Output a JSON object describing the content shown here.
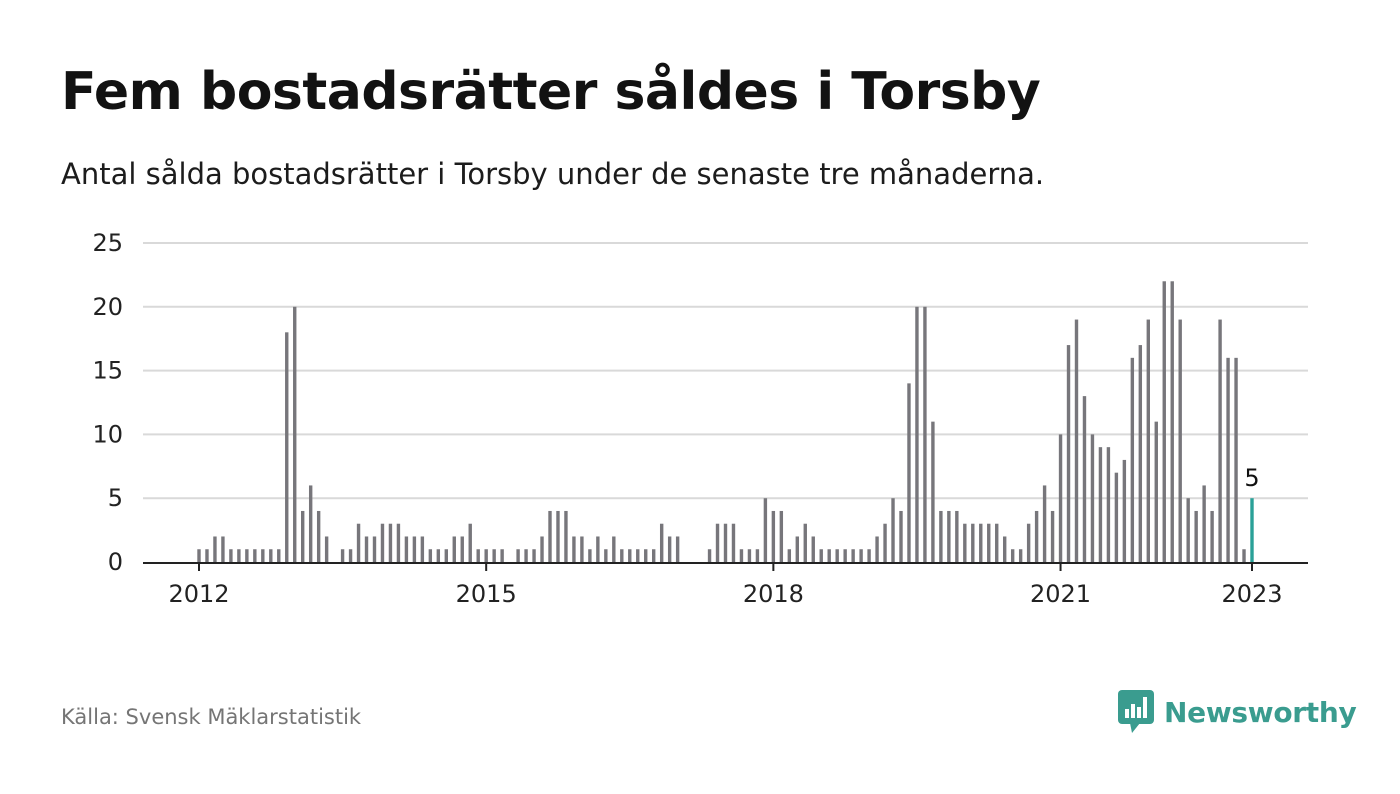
{
  "header": {
    "title": "Fem bostadsrätter såldes i Torsby",
    "subtitle": "Antal sålda bostadsrätter i Torsby under de senaste tre månaderna."
  },
  "footer": {
    "source": "Källa: Svensk Mäklarstatistik",
    "brand": "Newsworthy",
    "brand_icon": "bar-chart-speech-bubble-icon"
  },
  "colors": {
    "bar": "#77767b",
    "highlight": "#2aa198",
    "grid": "#d9d9d9",
    "axis": "#222222",
    "brand": "#3a9c8f"
  },
  "chart_data": {
    "type": "bar",
    "title": "Fem bostadsrätter såldes i Torsby",
    "subtitle": "Antal sålda bostadsrätter i Torsby under de senaste tre månaderna.",
    "xlabel": "",
    "ylabel": "",
    "ylim": [
      0,
      25
    ],
    "yticks": [
      0,
      5,
      10,
      15,
      20,
      25
    ],
    "grid": true,
    "x_start": "2012-01",
    "x_end": "2023-01",
    "x_ticks": [
      {
        "date": "2012-01",
        "label": "2012"
      },
      {
        "date": "2015-01",
        "label": "2015"
      },
      {
        "date": "2018-01",
        "label": "2018"
      },
      {
        "date": "2021-01",
        "label": "2021"
      },
      {
        "date": "2023-01",
        "label": "2023"
      }
    ],
    "highlight": {
      "date": "2023-01",
      "value": 5,
      "label": "5"
    },
    "series": [
      {
        "values": [
          {
            "date": "2012-01",
            "value": 1
          },
          {
            "date": "2012-02",
            "value": 1
          },
          {
            "date": "2012-03",
            "value": 2
          },
          {
            "date": "2012-04",
            "value": 2
          },
          {
            "date": "2012-05",
            "value": 1
          },
          {
            "date": "2012-06",
            "value": 1
          },
          {
            "date": "2012-07",
            "value": 1
          },
          {
            "date": "2012-08",
            "value": 1
          },
          {
            "date": "2012-09",
            "value": 1
          },
          {
            "date": "2012-10",
            "value": 1
          },
          {
            "date": "2012-11",
            "value": 1
          },
          {
            "date": "2012-12",
            "value": 18
          },
          {
            "date": "2013-01",
            "value": 20
          },
          {
            "date": "2013-02",
            "value": 4
          },
          {
            "date": "2013-03",
            "value": 6
          },
          {
            "date": "2013-04",
            "value": 4
          },
          {
            "date": "2013-05",
            "value": 2
          },
          {
            "date": "2013-06",
            "value": 0
          },
          {
            "date": "2013-07",
            "value": 1
          },
          {
            "date": "2013-08",
            "value": 1
          },
          {
            "date": "2013-09",
            "value": 3
          },
          {
            "date": "2013-10",
            "value": 2
          },
          {
            "date": "2013-11",
            "value": 2
          },
          {
            "date": "2013-12",
            "value": 3
          },
          {
            "date": "2014-01",
            "value": 3
          },
          {
            "date": "2014-02",
            "value": 3
          },
          {
            "date": "2014-03",
            "value": 2
          },
          {
            "date": "2014-04",
            "value": 2
          },
          {
            "date": "2014-05",
            "value": 2
          },
          {
            "date": "2014-06",
            "value": 1
          },
          {
            "date": "2014-07",
            "value": 1
          },
          {
            "date": "2014-08",
            "value": 1
          },
          {
            "date": "2014-09",
            "value": 2
          },
          {
            "date": "2014-10",
            "value": 2
          },
          {
            "date": "2014-11",
            "value": 3
          },
          {
            "date": "2014-12",
            "value": 1
          },
          {
            "date": "2015-01",
            "value": 1
          },
          {
            "date": "2015-02",
            "value": 1
          },
          {
            "date": "2015-03",
            "value": 1
          },
          {
            "date": "2015-04",
            "value": 0
          },
          {
            "date": "2015-05",
            "value": 1
          },
          {
            "date": "2015-06",
            "value": 1
          },
          {
            "date": "2015-07",
            "value": 1
          },
          {
            "date": "2015-08",
            "value": 2
          },
          {
            "date": "2015-09",
            "value": 4
          },
          {
            "date": "2015-10",
            "value": 4
          },
          {
            "date": "2015-11",
            "value": 4
          },
          {
            "date": "2015-12",
            "value": 2
          },
          {
            "date": "2016-01",
            "value": 2
          },
          {
            "date": "2016-02",
            "value": 1
          },
          {
            "date": "2016-03",
            "value": 2
          },
          {
            "date": "2016-04",
            "value": 1
          },
          {
            "date": "2016-05",
            "value": 2
          },
          {
            "date": "2016-06",
            "value": 1
          },
          {
            "date": "2016-07",
            "value": 1
          },
          {
            "date": "2016-08",
            "value": 1
          },
          {
            "date": "2016-09",
            "value": 1
          },
          {
            "date": "2016-10",
            "value": 1
          },
          {
            "date": "2016-11",
            "value": 3
          },
          {
            "date": "2016-12",
            "value": 2
          },
          {
            "date": "2017-01",
            "value": 2
          },
          {
            "date": "2017-02",
            "value": 0
          },
          {
            "date": "2017-03",
            "value": 0
          },
          {
            "date": "2017-04",
            "value": 0
          },
          {
            "date": "2017-05",
            "value": 1
          },
          {
            "date": "2017-06",
            "value": 3
          },
          {
            "date": "2017-07",
            "value": 3
          },
          {
            "date": "2017-08",
            "value": 3
          },
          {
            "date": "2017-09",
            "value": 1
          },
          {
            "date": "2017-10",
            "value": 1
          },
          {
            "date": "2017-11",
            "value": 1
          },
          {
            "date": "2017-12",
            "value": 5
          },
          {
            "date": "2018-01",
            "value": 4
          },
          {
            "date": "2018-02",
            "value": 4
          },
          {
            "date": "2018-03",
            "value": 1
          },
          {
            "date": "2018-04",
            "value": 2
          },
          {
            "date": "2018-05",
            "value": 3
          },
          {
            "date": "2018-06",
            "value": 2
          },
          {
            "date": "2018-07",
            "value": 1
          },
          {
            "date": "2018-08",
            "value": 1
          },
          {
            "date": "2018-09",
            "value": 1
          },
          {
            "date": "2018-10",
            "value": 1
          },
          {
            "date": "2018-11",
            "value": 1
          },
          {
            "date": "2018-12",
            "value": 1
          },
          {
            "date": "2019-01",
            "value": 1
          },
          {
            "date": "2019-02",
            "value": 2
          },
          {
            "date": "2019-03",
            "value": 3
          },
          {
            "date": "2019-04",
            "value": 5
          },
          {
            "date": "2019-05",
            "value": 4
          },
          {
            "date": "2019-06",
            "value": 14
          },
          {
            "date": "2019-07",
            "value": 20
          },
          {
            "date": "2019-08",
            "value": 20
          },
          {
            "date": "2019-09",
            "value": 11
          },
          {
            "date": "2019-10",
            "value": 4
          },
          {
            "date": "2019-11",
            "value": 4
          },
          {
            "date": "2019-12",
            "value": 4
          },
          {
            "date": "2020-01",
            "value": 3
          },
          {
            "date": "2020-02",
            "value": 3
          },
          {
            "date": "2020-03",
            "value": 3
          },
          {
            "date": "2020-04",
            "value": 3
          },
          {
            "date": "2020-05",
            "value": 3
          },
          {
            "date": "2020-06",
            "value": 2
          },
          {
            "date": "2020-07",
            "value": 1
          },
          {
            "date": "2020-08",
            "value": 1
          },
          {
            "date": "2020-09",
            "value": 3
          },
          {
            "date": "2020-10",
            "value": 4
          },
          {
            "date": "2020-11",
            "value": 6
          },
          {
            "date": "2020-12",
            "value": 4
          },
          {
            "date": "2021-01",
            "value": 10
          },
          {
            "date": "2021-02",
            "value": 17
          },
          {
            "date": "2021-03",
            "value": 19
          },
          {
            "date": "2021-04",
            "value": 13
          },
          {
            "date": "2021-05",
            "value": 10
          },
          {
            "date": "2021-06",
            "value": 9
          },
          {
            "date": "2021-07",
            "value": 9
          },
          {
            "date": "2021-08",
            "value": 7
          },
          {
            "date": "2021-09",
            "value": 8
          },
          {
            "date": "2021-10",
            "value": 16
          },
          {
            "date": "2021-11",
            "value": 17
          },
          {
            "date": "2021-12",
            "value": 19
          },
          {
            "date": "2022-01",
            "value": 11
          },
          {
            "date": "2022-02",
            "value": 22
          },
          {
            "date": "2022-03",
            "value": 22
          },
          {
            "date": "2022-04",
            "value": 19
          },
          {
            "date": "2022-05",
            "value": 5
          },
          {
            "date": "2022-06",
            "value": 4
          },
          {
            "date": "2022-07",
            "value": 6
          },
          {
            "date": "2022-08",
            "value": 4
          },
          {
            "date": "2022-09",
            "value": 19
          },
          {
            "date": "2022-10",
            "value": 16
          },
          {
            "date": "2022-11",
            "value": 16
          },
          {
            "date": "2022-12",
            "value": 1
          },
          {
            "date": "2023-01",
            "value": 5
          }
        ]
      }
    ]
  }
}
